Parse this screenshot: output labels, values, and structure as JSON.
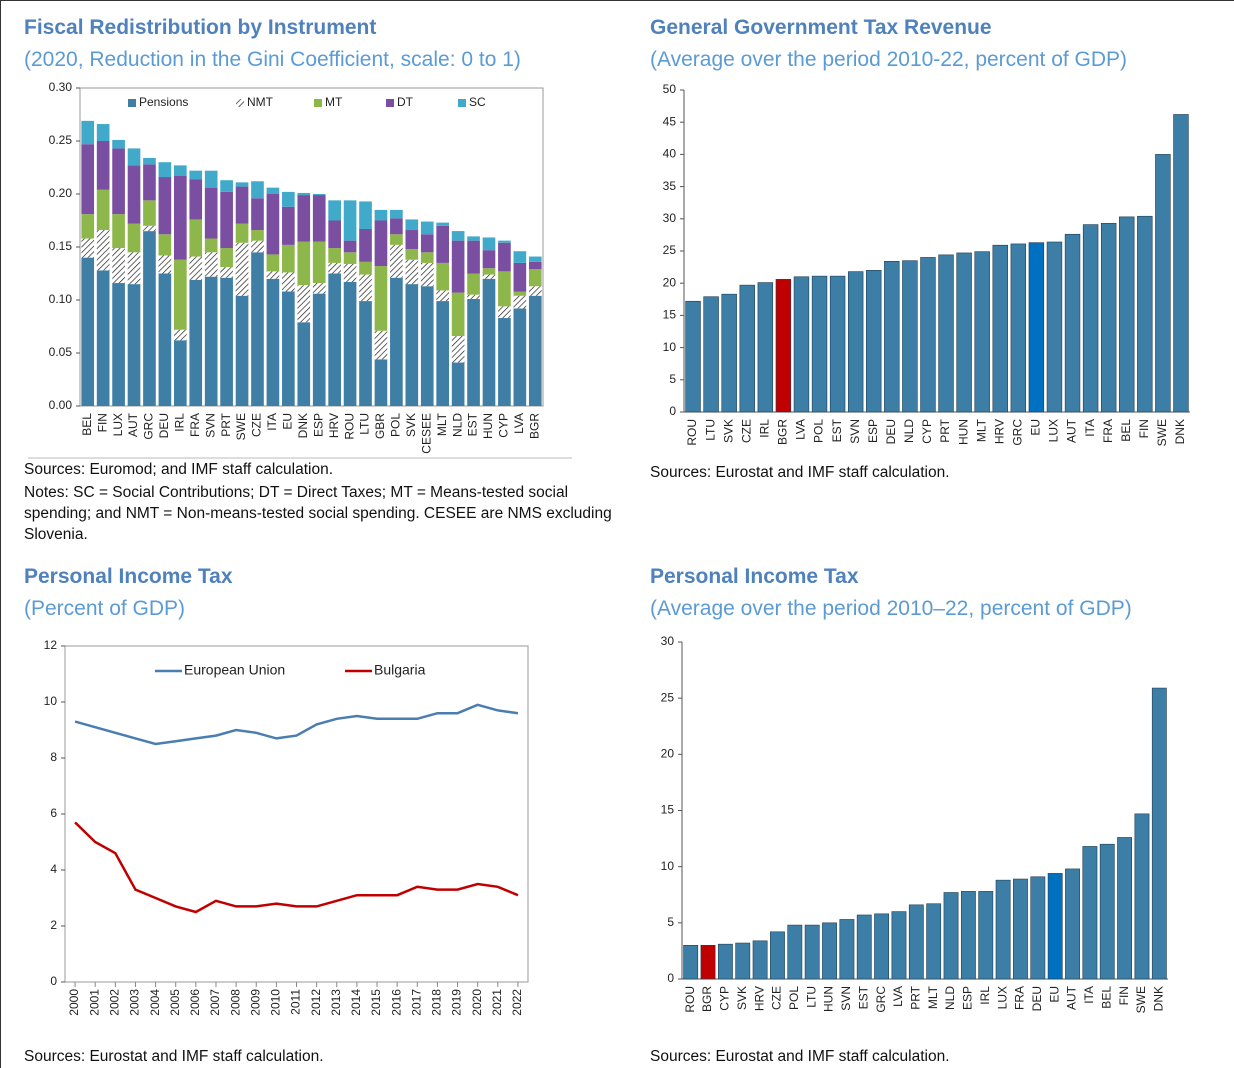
{
  "chart_data": [
    {
      "type": "bar",
      "stacked": true,
      "title": "Fiscal Redistribution by Instrument",
      "subtitle": "(2020, Reduction in the Gini Coefficient, scale: 0 to 1)",
      "source": "Sources: Euromod; and IMF staff calculation.",
      "notes": "Notes: SC = Social Contributions; DT = Direct Taxes; MT = Means-tested social spending; and NMT = Non-means-tested social spending. CESEE are NMS excluding Slovenia.",
      "categories": [
        "BEL",
        "FIN",
        "LUX",
        "AUT",
        "GRC",
        "DEU",
        "IRL",
        "FRA",
        "SVN",
        "PRT",
        "SWE",
        "CZE",
        "ITA",
        "EU",
        "DNK",
        "ESP",
        "HRV",
        "ROU",
        "LTU",
        "GBR",
        "POL",
        "SVK",
        "CESEE",
        "MLT",
        "NLD",
        "EST",
        "HUN",
        "CYP",
        "LVA",
        "BGR"
      ],
      "series": [
        {
          "name": "Pensions",
          "color": "#3f7fa6",
          "values": [
            0.14,
            0.128,
            0.116,
            0.115,
            0.165,
            0.125,
            0.062,
            0.119,
            0.122,
            0.121,
            0.104,
            0.145,
            0.12,
            0.108,
            0.079,
            0.106,
            0.125,
            0.117,
            0.099,
            0.044,
            0.121,
            0.115,
            0.113,
            0.099,
            0.041,
            0.101,
            0.12,
            0.083,
            0.092,
            0.104
          ]
        },
        {
          "name": "NMT",
          "color": "#222222",
          "pattern": "hatch",
          "values": [
            0.018,
            0.038,
            0.033,
            0.03,
            0.005,
            0.017,
            0.01,
            0.022,
            0.023,
            0.01,
            0.05,
            0.011,
            0.007,
            0.018,
            0.035,
            0.01,
            0.01,
            0.017,
            0.025,
            0.027,
            0.031,
            0.023,
            0.022,
            0.01,
            0.025,
            0.004,
            0.004,
            0.011,
            0.012,
            0.009
          ]
        },
        {
          "name": "MT",
          "color": "#8db74a",
          "values": [
            0.023,
            0.038,
            0.032,
            0.027,
            0.024,
            0.02,
            0.066,
            0.035,
            0.013,
            0.018,
            0.018,
            0.01,
            0.016,
            0.026,
            0.041,
            0.039,
            0.014,
            0.011,
            0.012,
            0.061,
            0.01,
            0.01,
            0.01,
            0.026,
            0.041,
            0.02,
            0.006,
            0.033,
            0.004,
            0.016
          ]
        },
        {
          "name": "DT",
          "color": "#7a4ea0",
          "values": [
            0.066,
            0.046,
            0.062,
            0.055,
            0.034,
            0.054,
            0.079,
            0.038,
            0.048,
            0.053,
            0.035,
            0.03,
            0.057,
            0.036,
            0.044,
            0.044,
            0.026,
            0.011,
            0.031,
            0.043,
            0.015,
            0.018,
            0.017,
            0.035,
            0.049,
            0.031,
            0.017,
            0.027,
            0.027,
            0.007
          ]
        },
        {
          "name": "SC",
          "color": "#41a9c9",
          "values": [
            0.022,
            0.016,
            0.008,
            0.016,
            0.006,
            0.014,
            0.01,
            0.008,
            0.016,
            0.011,
            0.004,
            0.016,
            0.006,
            0.014,
            0.002,
            0.001,
            0.019,
            0.038,
            0.026,
            0.01,
            0.008,
            0.01,
            0.012,
            0.003,
            0.009,
            0.004,
            0.012,
            0.002,
            0.011,
            0.005
          ]
        }
      ],
      "ylim": [
        0,
        0.3
      ],
      "yticks": [
        {
          "value": 0,
          "label": "0.00"
        },
        {
          "value": 0.05,
          "label": "0.05"
        },
        {
          "value": 0.1,
          "label": "0.10"
        },
        {
          "value": 0.15,
          "label": "0.15"
        },
        {
          "value": 0.2,
          "label": "0.20"
        },
        {
          "value": 0.25,
          "label": "0.25"
        },
        {
          "value": 0.3,
          "label": "0.30"
        }
      ],
      "legend": "top"
    },
    {
      "type": "bar",
      "title": "General Government Tax Revenue",
      "subtitle": "(Average over the period 2010-22, percent of GDP)",
      "source": "Sources: Eurostat and IMF staff calculation.",
      "categories": [
        "ROU",
        "LTU",
        "SVK",
        "CZE",
        "IRL",
        "BGR",
        "LVA",
        "POL",
        "EST",
        "SVN",
        "ESP",
        "DEU",
        "NLD",
        "CYP",
        "PRT",
        "HUN",
        "MLT",
        "HRV",
        "GRC",
        "EU",
        "LUX",
        "AUT",
        "ITA",
        "FRA",
        "BEL",
        "FIN",
        "SWE",
        "DNK"
      ],
      "values": [
        17.2,
        17.9,
        18.3,
        19.7,
        20.1,
        20.6,
        21.0,
        21.1,
        21.1,
        21.8,
        22.0,
        23.4,
        23.5,
        24.0,
        24.4,
        24.7,
        24.9,
        25.9,
        26.1,
        26.3,
        26.4,
        27.6,
        29.1,
        29.3,
        30.3,
        30.4,
        40.0,
        46.2
      ],
      "colors": [
        "#3d7ea6",
        "#3d7ea6",
        "#3d7ea6",
        "#3d7ea6",
        "#3d7ea6",
        "#c00000",
        "#3d7ea6",
        "#3d7ea6",
        "#3d7ea6",
        "#3d7ea6",
        "#3d7ea6",
        "#3d7ea6",
        "#3d7ea6",
        "#3d7ea6",
        "#3d7ea6",
        "#3d7ea6",
        "#3d7ea6",
        "#3d7ea6",
        "#3d7ea6",
        "#0070c0",
        "#3d7ea6",
        "#3d7ea6",
        "#3d7ea6",
        "#3d7ea6",
        "#3d7ea6",
        "#3d7ea6",
        "#3d7ea6",
        "#3d7ea6"
      ],
      "ylim": [
        0,
        50
      ],
      "yticks": [
        0,
        5,
        10,
        15,
        20,
        25,
        30,
        35,
        40,
        45,
        50
      ]
    },
    {
      "type": "line",
      "title": "Personal Income Tax",
      "subtitle": "(Percent of GDP)",
      "source": "Sources: Eurostat and IMF staff calculation.",
      "categories": [
        "2000",
        "2001",
        "2002",
        "2003",
        "2004",
        "2005",
        "2006",
        "2007",
        "2008",
        "2009",
        "2010",
        "2011",
        "2012",
        "2013",
        "2014",
        "2015",
        "2016",
        "2017",
        "2018",
        "2019",
        "2020",
        "2021",
        "2022"
      ],
      "series": [
        {
          "name": "European Union",
          "color": "#4a7eb0",
          "values": [
            9.3,
            9.1,
            8.9,
            8.7,
            8.5,
            8.6,
            8.7,
            8.8,
            9.0,
            8.9,
            8.7,
            8.8,
            9.2,
            9.4,
            9.5,
            9.4,
            9.4,
            9.4,
            9.6,
            9.6,
            9.9,
            9.7,
            9.6
          ]
        },
        {
          "name": "Bulgaria",
          "color": "#c00000",
          "values": [
            5.7,
            5.0,
            4.6,
            3.3,
            3.0,
            2.7,
            2.5,
            2.9,
            2.7,
            2.7,
            2.8,
            2.7,
            2.7,
            2.9,
            3.1,
            3.1,
            3.1,
            3.4,
            3.3,
            3.3,
            3.5,
            3.4,
            3.1
          ]
        }
      ],
      "ylim": [
        0,
        12
      ],
      "yticks": [
        0,
        2,
        4,
        6,
        8,
        10,
        12
      ],
      "legend": "top"
    },
    {
      "type": "bar",
      "title": "Personal Income Tax",
      "subtitle": "(Average over the period 2010–22, percent of GDP)",
      "source": "Sources: Eurostat and IMF staff calculation.",
      "categories": [
        "ROU",
        "BGR",
        "CYP",
        "SVK",
        "HRV",
        "CZE",
        "POL",
        "LTU",
        "HUN",
        "SVN",
        "EST",
        "GRC",
        "LVA",
        "PRT",
        "MLT",
        "NLD",
        "ESP",
        "IRL",
        "LUX",
        "FRA",
        "DEU",
        "EU",
        "AUT",
        "ITA",
        "BEL",
        "FIN",
        "SWE",
        "DNK"
      ],
      "values": [
        3.0,
        3.0,
        3.1,
        3.2,
        3.4,
        4.2,
        4.8,
        4.8,
        5.0,
        5.3,
        5.7,
        5.8,
        6.0,
        6.6,
        6.7,
        7.7,
        7.8,
        7.8,
        8.8,
        8.9,
        9.1,
        9.4,
        9.8,
        11.8,
        12.0,
        12.6,
        14.7,
        25.9
      ],
      "colors": [
        "#3d7ea6",
        "#c00000",
        "#3d7ea6",
        "#3d7ea6",
        "#3d7ea6",
        "#3d7ea6",
        "#3d7ea6",
        "#3d7ea6",
        "#3d7ea6",
        "#3d7ea6",
        "#3d7ea6",
        "#3d7ea6",
        "#3d7ea6",
        "#3d7ea6",
        "#3d7ea6",
        "#3d7ea6",
        "#3d7ea6",
        "#3d7ea6",
        "#3d7ea6",
        "#3d7ea6",
        "#3d7ea6",
        "#0070c0",
        "#3d7ea6",
        "#3d7ea6",
        "#3d7ea6",
        "#3d7ea6",
        "#3d7ea6",
        "#3d7ea6"
      ],
      "ylim": [
        0,
        30
      ],
      "yticks": [
        0,
        5,
        10,
        15,
        20,
        25,
        30
      ]
    }
  ]
}
